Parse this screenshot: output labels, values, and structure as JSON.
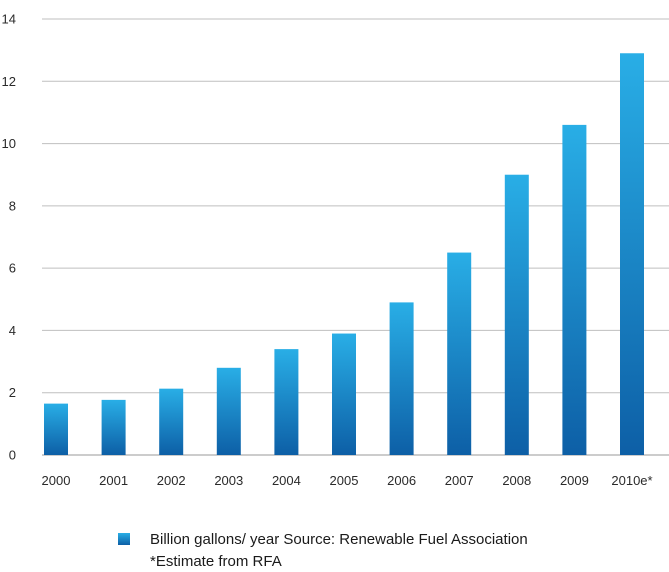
{
  "chart_data": {
    "type": "bar",
    "categories": [
      "2000",
      "2001",
      "2002",
      "2003",
      "2004",
      "2005",
      "2006",
      "2007",
      "2008",
      "2009",
      "2010e*"
    ],
    "values": [
      1.65,
      1.77,
      2.13,
      2.8,
      3.4,
      3.9,
      4.9,
      6.5,
      9.0,
      10.6,
      12.9
    ],
    "series": [
      {
        "name": "Billion gallons/ year Source: Renewable Fuel Association",
        "values": [
          1.65,
          1.77,
          2.13,
          2.8,
          3.4,
          3.9,
          4.9,
          6.5,
          9.0,
          10.6,
          12.9
        ]
      }
    ],
    "yticks": [
      "0",
      "2",
      "4",
      "6",
      "8",
      "10",
      "12",
      "14"
    ],
    "ylim": [
      0,
      14
    ],
    "grid": true,
    "legend_position": "bottom",
    "legend_label": "Billion gallons/ year Source: Renewable Fuel Association",
    "footnote": "*Estimate from RFA",
    "colors": {
      "bar_top": "#29aee6",
      "bar_bottom": "#0d5fa6",
      "grid": "#bfbfbf",
      "axis": "#9a9a9a"
    }
  }
}
